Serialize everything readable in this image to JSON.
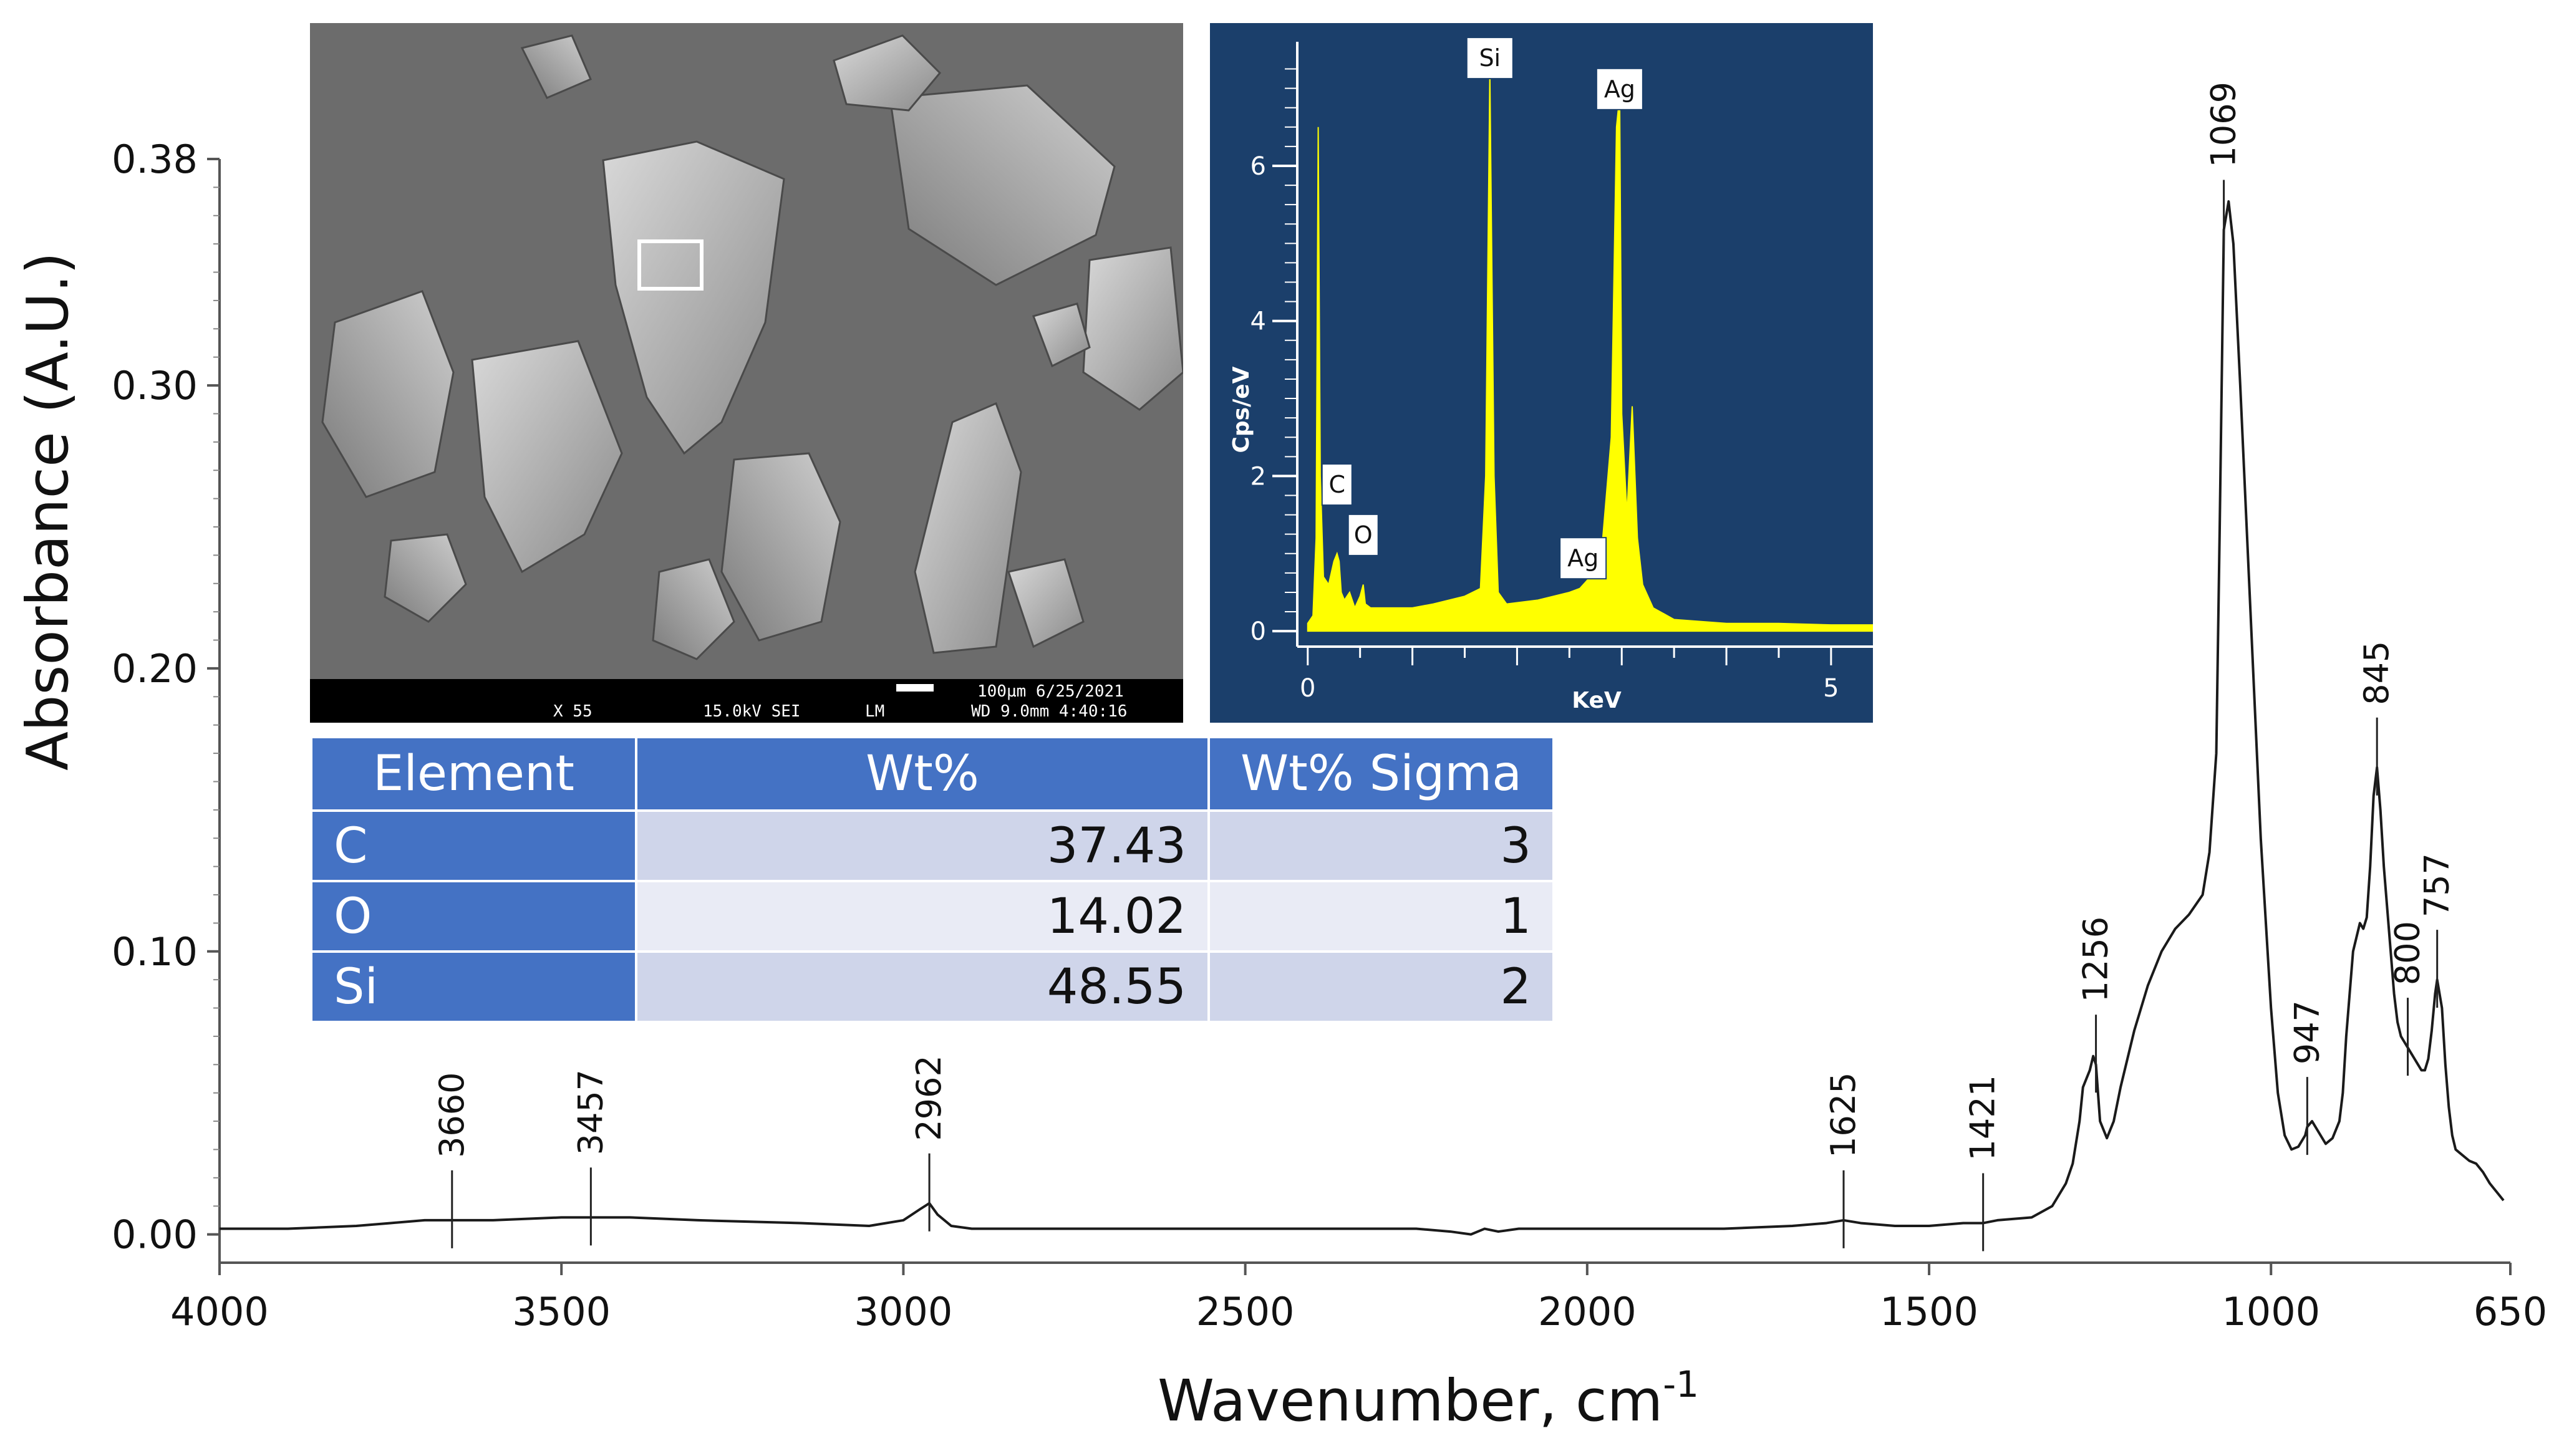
{
  "chart_data": [
    {
      "type": "line",
      "title": "",
      "xlabel": "Wavenumber, cm",
      "xlabel_superscript": "-1",
      "ylabel": "Absorbance (A.U.)",
      "xlim": [
        4000,
        650
      ],
      "x_reversed": true,
      "ylim": [
        -0.01,
        0.38
      ],
      "xticks": [
        4000,
        3500,
        3000,
        2500,
        2000,
        1500,
        1000,
        650
      ],
      "xtick_labels": [
        "4000",
        "3500",
        "3000",
        "2500",
        "2000",
        "1500",
        "1000",
        "650"
      ],
      "yticks": [
        0.0,
        0.1,
        0.2,
        0.3,
        0.38
      ],
      "ytick_labels": [
        "0.00",
        "0.10",
        "0.20",
        "0.30",
        "0.38"
      ],
      "grid": false,
      "series": [
        {
          "color": "#1a1a1a",
          "x": [
            4000,
            3900,
            3800,
            3750,
            3700,
            3660,
            3600,
            3500,
            3457,
            3400,
            3300,
            3150,
            3050,
            3000,
            2975,
            2962,
            2950,
            2930,
            2900,
            2800,
            2700,
            2600,
            2500,
            2400,
            2300,
            2250,
            2200,
            2170,
            2150,
            2130,
            2100,
            2000,
            1900,
            1800,
            1700,
            1650,
            1625,
            1600,
            1550,
            1500,
            1450,
            1421,
            1400,
            1350,
            1320,
            1300,
            1290,
            1280,
            1275,
            1265,
            1260,
            1256,
            1250,
            1240,
            1230,
            1220,
            1200,
            1180,
            1160,
            1140,
            1120,
            1100,
            1090,
            1080,
            1075,
            1069,
            1062,
            1055,
            1045,
            1030,
            1015,
            1000,
            990,
            980,
            970,
            960,
            950,
            947,
            940,
            930,
            920,
            910,
            900,
            895,
            890,
            880,
            870,
            865,
            860,
            855,
            850,
            845,
            840,
            835,
            830,
            825,
            820,
            815,
            810,
            805,
            800,
            795,
            790,
            785,
            780,
            775,
            770,
            765,
            760,
            757,
            750,
            745,
            740,
            735,
            730,
            720,
            710,
            700,
            690,
            680,
            670,
            660
          ],
          "y": [
            0.002,
            0.002,
            0.003,
            0.004,
            0.005,
            0.005,
            0.005,
            0.006,
            0.006,
            0.006,
            0.005,
            0.004,
            0.003,
            0.005,
            0.009,
            0.011,
            0.007,
            0.003,
            0.002,
            0.002,
            0.002,
            0.002,
            0.002,
            0.002,
            0.002,
            0.002,
            0.001,
            0.0,
            0.002,
            0.001,
            0.002,
            0.002,
            0.002,
            0.002,
            0.003,
            0.004,
            0.005,
            0.004,
            0.003,
            0.003,
            0.004,
            0.004,
            0.005,
            0.006,
            0.01,
            0.018,
            0.025,
            0.04,
            0.052,
            0.058,
            0.063,
            0.06,
            0.04,
            0.034,
            0.04,
            0.052,
            0.072,
            0.088,
            0.1,
            0.108,
            0.113,
            0.12,
            0.135,
            0.17,
            0.25,
            0.355,
            0.365,
            0.35,
            0.3,
            0.22,
            0.14,
            0.08,
            0.05,
            0.035,
            0.03,
            0.031,
            0.035,
            0.038,
            0.04,
            0.036,
            0.032,
            0.034,
            0.04,
            0.05,
            0.07,
            0.1,
            0.11,
            0.108,
            0.112,
            0.13,
            0.155,
            0.165,
            0.15,
            0.13,
            0.115,
            0.1,
            0.085,
            0.075,
            0.07,
            0.068,
            0.066,
            0.064,
            0.062,
            0.06,
            0.058,
            0.058,
            0.062,
            0.072,
            0.085,
            0.09,
            0.08,
            0.06,
            0.045,
            0.035,
            0.03,
            0.028,
            0.026,
            0.025,
            0.022,
            0.018,
            0.015,
            0.012
          ]
        }
      ],
      "peak_annotations": [
        {
          "x": 3660,
          "label": "3660"
        },
        {
          "x": 3457,
          "label": "3457"
        },
        {
          "x": 2962,
          "label": "2962"
        },
        {
          "x": 1625,
          "label": "1625"
        },
        {
          "x": 1421,
          "label": "1421"
        },
        {
          "x": 1256,
          "label": "1256"
        },
        {
          "x": 1069,
          "label": "1069"
        },
        {
          "x": 947,
          "label": "947"
        },
        {
          "x": 845,
          "label": "845"
        },
        {
          "x": 800,
          "label": "800"
        },
        {
          "x": 757,
          "label": "757"
        }
      ]
    },
    {
      "type": "line",
      "title": "",
      "xlabel": "KeV",
      "ylabel": "Cps/eV",
      "xlim": [
        -0.1,
        5.4
      ],
      "ylim": [
        -0.2,
        7.6
      ],
      "xticks": [
        0,
        5
      ],
      "yticks": [
        0,
        2,
        4,
        6
      ],
      "grid": false,
      "series": [
        {
          "color": "#ffff00",
          "x": [
            0.0,
            0.05,
            0.08,
            0.1,
            0.12,
            0.15,
            0.2,
            0.25,
            0.28,
            0.3,
            0.32,
            0.35,
            0.4,
            0.45,
            0.5,
            0.53,
            0.55,
            0.6,
            0.8,
            1.0,
            1.2,
            1.5,
            1.65,
            1.7,
            1.74,
            1.78,
            1.82,
            1.9,
            2.2,
            2.5,
            2.6,
            2.7,
            2.8,
            2.9,
            2.95,
            2.98,
            3.0,
            3.05,
            3.1,
            3.15,
            3.2,
            3.3,
            3.5,
            4.0,
            4.5,
            5.0,
            5.4
          ],
          "y": [
            0.1,
            0.2,
            1.2,
            6.5,
            2.0,
            0.7,
            0.6,
            0.9,
            1.0,
            0.9,
            0.5,
            0.4,
            0.5,
            0.3,
            0.45,
            0.6,
            0.35,
            0.3,
            0.3,
            0.3,
            0.35,
            0.45,
            0.55,
            2.0,
            7.2,
            2.0,
            0.5,
            0.35,
            0.4,
            0.5,
            0.55,
            0.7,
            0.9,
            2.5,
            6.5,
            6.9,
            2.8,
            1.5,
            2.9,
            1.2,
            0.6,
            0.3,
            0.15,
            0.1,
            0.1,
            0.08,
            0.08
          ]
        }
      ],
      "peak_labels": [
        {
          "x": 0.28,
          "y": 1.85,
          "label": "C"
        },
        {
          "x": 0.53,
          "y": 1.2,
          "label": "O"
        },
        {
          "x": 1.74,
          "y": 7.35,
          "label": "Si"
        },
        {
          "x": 2.98,
          "y": 6.95,
          "label": "Ag"
        },
        {
          "x": 2.63,
          "y": 0.9,
          "label": "Ag"
        }
      ],
      "colors": {
        "background": "#1b3f6b",
        "axis": "#ffffff",
        "trace": "#ffff00"
      }
    }
  ],
  "sem_image": {
    "caption_line1": "100µm 6/25/2021",
    "caption_left": "X 55",
    "caption_mid": "15.0kV SEI",
    "caption_mode": "LM",
    "caption_line2": "WD 9.0mm  4:40:16"
  },
  "eds_table": {
    "headers": [
      "Element",
      "Wt%",
      "Wt% Sigma"
    ],
    "rows": [
      {
        "element": "C",
        "wt": "37.43",
        "sigma": "3"
      },
      {
        "element": "O",
        "wt": "14.02",
        "sigma": "1"
      },
      {
        "element": "Si",
        "wt": "48.55",
        "sigma": "2"
      }
    ]
  }
}
